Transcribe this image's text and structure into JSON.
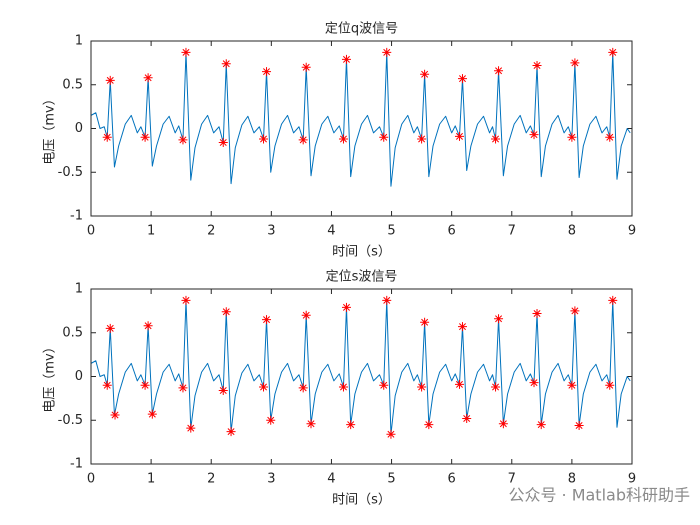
{
  "chart_data": [
    {
      "type": "line",
      "title": "定位q波信号",
      "xlabel": "时间（s）",
      "ylabel": "电压（mv）",
      "xlim": [
        0,
        9
      ],
      "ylim": [
        -1,
        1
      ],
      "xticks": [
        0,
        1,
        2,
        3,
        4,
        5,
        6,
        7,
        8,
        9
      ],
      "yticks": [
        -1,
        -0.5,
        0,
        0.5,
        1
      ],
      "series": [
        {
          "color": "#0072bd",
          "linestyle": "-",
          "marker": "none",
          "x": [
            0,
            0.08,
            0.15,
            0.22,
            0.27,
            0.32,
            0.39,
            0.46,
            0.57,
            0.67,
            0.77,
            0.83,
            0.9,
            0.95,
            1.02,
            1.09,
            1.2,
            1.3,
            1.4,
            1.46,
            1.53,
            1.58,
            1.66,
            1.73,
            1.84,
            1.94,
            2.04,
            2.13,
            2.2,
            2.25,
            2.33,
            2.4,
            2.51,
            2.61,
            2.71,
            2.8,
            2.87,
            2.92,
            2.99,
            3.06,
            3.17,
            3.27,
            3.37,
            3.46,
            3.53,
            3.58,
            3.66,
            3.73,
            3.84,
            3.94,
            4.04,
            4.13,
            4.2,
            4.25,
            4.32,
            4.39,
            4.5,
            4.6,
            4.7,
            4.8,
            4.87,
            4.92,
            4.99,
            5.06,
            5.17,
            5.27,
            5.37,
            5.43,
            5.5,
            5.55,
            5.62,
            5.69,
            5.8,
            5.9,
            6.0,
            6.06,
            6.13,
            6.18,
            6.25,
            6.32,
            6.43,
            6.53,
            6.63,
            6.68,
            6.73,
            6.78,
            6.86,
            6.93,
            7.04,
            7.14,
            7.24,
            7.31,
            7.37,
            7.42,
            7.49,
            7.56,
            7.67,
            7.77,
            7.87,
            7.94,
            8.0,
            8.05,
            8.12,
            8.19,
            8.3,
            8.4,
            8.5,
            8.58,
            8.63,
            8.68,
            8.75,
            8.82,
            8.92,
            8.97
          ],
          "values": [
            0.15,
            0.18,
            0.0,
            0.02,
            -0.1,
            0.55,
            -0.44,
            -0.2,
            0.05,
            0.15,
            -0.05,
            0.02,
            -0.1,
            0.58,
            -0.43,
            -0.2,
            0.05,
            0.14,
            -0.05,
            0.03,
            -0.13,
            0.87,
            -0.59,
            -0.22,
            0.05,
            0.15,
            -0.05,
            0.02,
            -0.16,
            0.74,
            -0.63,
            -0.22,
            0.04,
            0.14,
            -0.05,
            0.02,
            -0.12,
            0.65,
            -0.5,
            -0.2,
            0.05,
            0.15,
            -0.05,
            0.02,
            -0.13,
            0.7,
            -0.54,
            -0.2,
            0.05,
            0.14,
            -0.05,
            0.03,
            -0.12,
            0.79,
            -0.55,
            -0.2,
            0.05,
            0.15,
            -0.05,
            0.02,
            -0.1,
            0.87,
            -0.66,
            -0.22,
            0.05,
            0.15,
            -0.05,
            0.02,
            -0.12,
            0.62,
            -0.55,
            -0.2,
            0.05,
            0.14,
            -0.05,
            0.03,
            -0.09,
            0.57,
            -0.48,
            -0.2,
            0.05,
            0.14,
            -0.05,
            0.02,
            -0.12,
            0.66,
            -0.54,
            -0.2,
            0.05,
            0.15,
            -0.05,
            0.03,
            -0.07,
            0.72,
            -0.55,
            -0.2,
            0.05,
            0.15,
            -0.05,
            0.02,
            -0.1,
            0.75,
            -0.56,
            -0.2,
            0.05,
            0.14,
            -0.05,
            0.02,
            -0.1,
            0.87,
            -0.58,
            -0.2,
            0.0,
            -0.05
          ]
        },
        {
          "color": "#ff0000",
          "linestyle": "none",
          "marker": "*",
          "x": [
            0.32,
            0.95,
            1.58,
            2.25,
            2.92,
            3.58,
            4.25,
            4.92,
            5.55,
            6.18,
            6.78,
            7.42,
            8.05,
            8.68
          ],
          "values": [
            0.55,
            0.58,
            0.87,
            0.74,
            0.65,
            0.7,
            0.79,
            0.87,
            0.62,
            0.57,
            0.66,
            0.72,
            0.75,
            0.87
          ]
        },
        {
          "color": "#ff0000",
          "linestyle": "none",
          "marker": "*",
          "x": [
            0.27,
            0.9,
            1.53,
            2.2,
            2.87,
            3.53,
            4.2,
            4.87,
            5.5,
            6.13,
            6.73,
            7.37,
            8.0,
            8.63
          ],
          "values": [
            -0.1,
            -0.1,
            -0.13,
            -0.16,
            -0.12,
            -0.13,
            -0.12,
            -0.1,
            -0.12,
            -0.09,
            -0.12,
            -0.07,
            -0.1,
            -0.1
          ]
        }
      ]
    },
    {
      "type": "line",
      "title": "定位s波信号",
      "xlabel": "时间（s）",
      "ylabel": "电压（mv）",
      "xlim": [
        0,
        9
      ],
      "ylim": [
        -1,
        1
      ],
      "xticks": [
        0,
        1,
        2,
        3,
        4,
        5,
        6,
        7,
        8,
        9
      ],
      "yticks": [
        -1,
        -0.5,
        0,
        0.5,
        1
      ],
      "series": [
        {
          "color": "#0072bd",
          "linestyle": "-",
          "marker": "none",
          "x": [
            0,
            0.08,
            0.15,
            0.22,
            0.27,
            0.32,
            0.39,
            0.46,
            0.57,
            0.67,
            0.77,
            0.83,
            0.9,
            0.95,
            1.02,
            1.09,
            1.2,
            1.3,
            1.4,
            1.46,
            1.53,
            1.58,
            1.66,
            1.73,
            1.84,
            1.94,
            2.04,
            2.13,
            2.2,
            2.25,
            2.33,
            2.4,
            2.51,
            2.61,
            2.71,
            2.8,
            2.87,
            2.92,
            2.99,
            3.06,
            3.17,
            3.27,
            3.37,
            3.46,
            3.53,
            3.58,
            3.66,
            3.73,
            3.84,
            3.94,
            4.04,
            4.13,
            4.2,
            4.25,
            4.32,
            4.39,
            4.5,
            4.6,
            4.7,
            4.8,
            4.87,
            4.92,
            4.99,
            5.06,
            5.17,
            5.27,
            5.37,
            5.43,
            5.5,
            5.55,
            5.62,
            5.69,
            5.8,
            5.9,
            6.0,
            6.06,
            6.13,
            6.18,
            6.25,
            6.32,
            6.43,
            6.53,
            6.63,
            6.68,
            6.73,
            6.78,
            6.86,
            6.93,
            7.04,
            7.14,
            7.24,
            7.31,
            7.37,
            7.42,
            7.49,
            7.56,
            7.67,
            7.77,
            7.87,
            7.94,
            8.0,
            8.05,
            8.12,
            8.19,
            8.3,
            8.4,
            8.5,
            8.58,
            8.63,
            8.68,
            8.75,
            8.82,
            8.92,
            8.97
          ],
          "values": [
            0.15,
            0.18,
            0.0,
            0.02,
            -0.1,
            0.55,
            -0.44,
            -0.2,
            0.05,
            0.15,
            -0.05,
            0.02,
            -0.1,
            0.58,
            -0.43,
            -0.2,
            0.05,
            0.14,
            -0.05,
            0.03,
            -0.13,
            0.87,
            -0.59,
            -0.22,
            0.05,
            0.15,
            -0.05,
            0.02,
            -0.16,
            0.74,
            -0.63,
            -0.22,
            0.04,
            0.14,
            -0.05,
            0.02,
            -0.12,
            0.65,
            -0.5,
            -0.2,
            0.05,
            0.15,
            -0.05,
            0.02,
            -0.13,
            0.7,
            -0.54,
            -0.2,
            0.05,
            0.14,
            -0.05,
            0.03,
            -0.12,
            0.79,
            -0.55,
            -0.2,
            0.05,
            0.15,
            -0.05,
            0.02,
            -0.1,
            0.87,
            -0.66,
            -0.22,
            0.05,
            0.15,
            -0.05,
            0.02,
            -0.12,
            0.62,
            -0.55,
            -0.2,
            0.05,
            0.14,
            -0.05,
            0.03,
            -0.09,
            0.57,
            -0.48,
            -0.2,
            0.05,
            0.14,
            -0.05,
            0.02,
            -0.12,
            0.66,
            -0.54,
            -0.2,
            0.05,
            0.15,
            -0.05,
            0.03,
            -0.07,
            0.72,
            -0.55,
            -0.2,
            0.05,
            0.15,
            -0.05,
            0.02,
            -0.1,
            0.75,
            -0.56,
            -0.2,
            0.05,
            0.14,
            -0.05,
            0.02,
            -0.1,
            0.87,
            -0.58,
            -0.2,
            0.0,
            -0.05
          ]
        },
        {
          "color": "#ff0000",
          "linestyle": "none",
          "marker": "*",
          "x": [
            0.32,
            0.95,
            1.58,
            2.25,
            2.92,
            3.58,
            4.25,
            4.92,
            5.55,
            6.18,
            6.78,
            7.42,
            8.05,
            8.68
          ],
          "values": [
            0.55,
            0.58,
            0.87,
            0.74,
            0.65,
            0.7,
            0.79,
            0.87,
            0.62,
            0.57,
            0.66,
            0.72,
            0.75,
            0.87
          ]
        },
        {
          "color": "#ff0000",
          "linestyle": "none",
          "marker": "*",
          "x": [
            0.27,
            0.9,
            1.53,
            2.2,
            2.87,
            3.53,
            4.2,
            4.87,
            5.5,
            6.13,
            6.73,
            7.37,
            8.0,
            8.63
          ],
          "values": [
            -0.1,
            -0.1,
            -0.13,
            -0.16,
            -0.12,
            -0.13,
            -0.12,
            -0.1,
            -0.12,
            -0.09,
            -0.12,
            -0.07,
            -0.1,
            -0.1
          ]
        },
        {
          "color": "#ff0000",
          "linestyle": "none",
          "marker": "*",
          "x": [
            0.4,
            1.02,
            1.66,
            2.33,
            2.99,
            3.66,
            4.32,
            4.99,
            5.62,
            6.25,
            6.86,
            7.49,
            8.12
          ],
          "values": [
            -0.44,
            -0.43,
            -0.59,
            -0.63,
            -0.5,
            -0.54,
            -0.55,
            -0.66,
            -0.55,
            -0.48,
            -0.54,
            -0.55,
            -0.56
          ]
        }
      ]
    }
  ],
  "watermark": "公众号 · Matlab科研助手"
}
